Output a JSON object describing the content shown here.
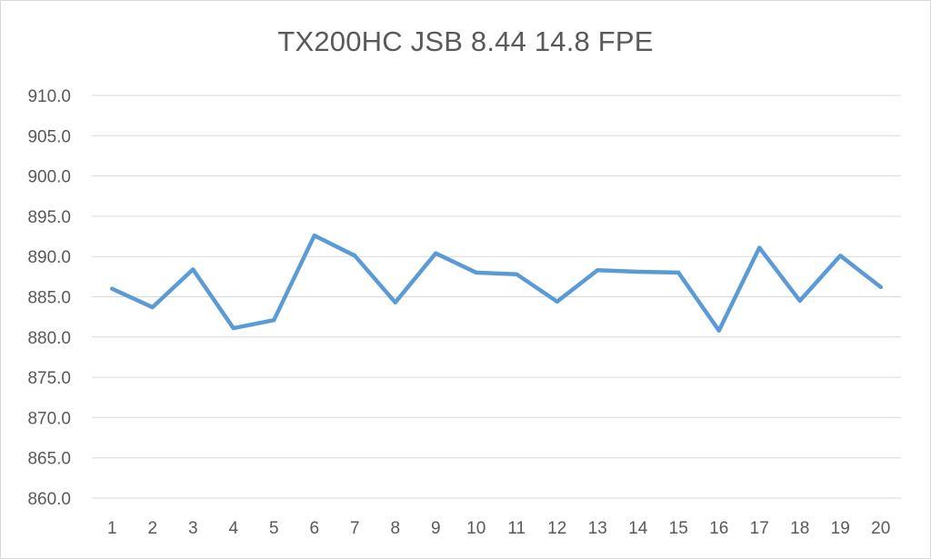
{
  "chart_data": {
    "type": "line",
    "title": "TX200HC JSB 8.44 14.8 FPE",
    "xlabel": "",
    "ylabel": "",
    "categories": [
      "1",
      "2",
      "3",
      "4",
      "5",
      "6",
      "7",
      "8",
      "9",
      "10",
      "11",
      "12",
      "13",
      "14",
      "15",
      "16",
      "17",
      "18",
      "19",
      "20"
    ],
    "series": [
      {
        "values": [
          886.0,
          883.7,
          888.4,
          881.1,
          882.1,
          892.6,
          890.1,
          884.3,
          890.4,
          888.0,
          887.8,
          884.4,
          888.3,
          888.1,
          888.0,
          880.8,
          891.1,
          884.5,
          890.1,
          886.2
        ],
        "color": "#5b9bd5"
      }
    ],
    "ylim": [
      860,
      910
    ],
    "ytick_step": 5,
    "ytick_labels": [
      "860.0",
      "865.0",
      "870.0",
      "875.0",
      "880.0",
      "885.0",
      "890.0",
      "895.0",
      "900.0",
      "905.0",
      "910.0"
    ],
    "grid": true,
    "legend": "none",
    "gridline_color": "#d9d9d9",
    "text_color": "#595959"
  }
}
